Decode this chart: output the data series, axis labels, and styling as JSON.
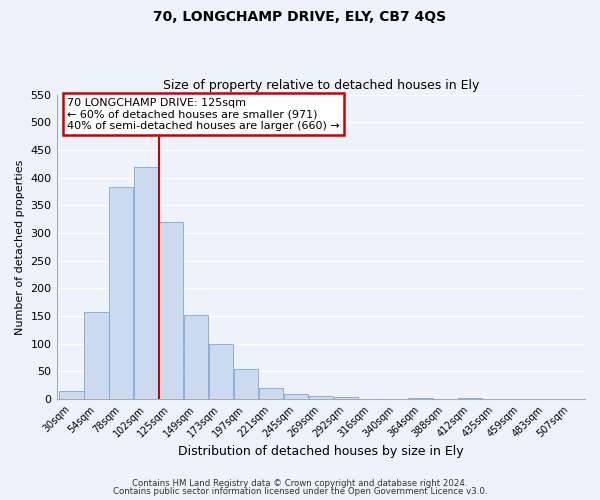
{
  "title": "70, LONGCHAMP DRIVE, ELY, CB7 4QS",
  "subtitle": "Size of property relative to detached houses in Ely",
  "xlabel": "Distribution of detached houses by size in Ely",
  "ylabel": "Number of detached properties",
  "bin_labels": [
    "30sqm",
    "54sqm",
    "78sqm",
    "102sqm",
    "125sqm",
    "149sqm",
    "173sqm",
    "197sqm",
    "221sqm",
    "245sqm",
    "269sqm",
    "292sqm",
    "316sqm",
    "340sqm",
    "364sqm",
    "388sqm",
    "412sqm",
    "435sqm",
    "459sqm",
    "483sqm",
    "507sqm"
  ],
  "bar_heights": [
    15,
    157,
    383,
    420,
    320,
    152,
    100,
    54,
    20,
    9,
    5,
    4,
    0,
    0,
    3,
    0,
    2,
    0,
    1,
    0,
    1
  ],
  "bar_color": "#ccdaf0",
  "bar_edge_color": "#7ba7d4",
  "vline_x": 4,
  "vline_color": "#cc0000",
  "ylim": [
    0,
    550
  ],
  "yticks": [
    0,
    50,
    100,
    150,
    200,
    250,
    300,
    350,
    400,
    450,
    500,
    550
  ],
  "annotation_title": "70 LONGCHAMP DRIVE: 125sqm",
  "annotation_line1": "← 60% of detached houses are smaller (971)",
  "annotation_line2": "40% of semi-detached houses are larger (660) →",
  "annotation_box_color": "#ffffff",
  "annotation_box_edge": "#cc0000",
  "footer1": "Contains HM Land Registry data © Crown copyright and database right 2024.",
  "footer2": "Contains public sector information licensed under the Open Government Licence v3.0.",
  "background_color": "#eef2fb",
  "grid_color": "#ffffff"
}
